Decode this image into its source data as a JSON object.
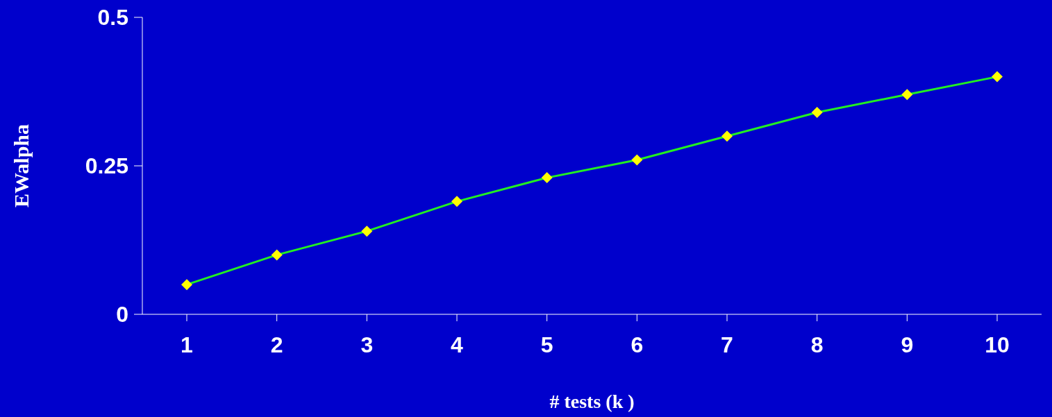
{
  "chart_data": {
    "type": "line",
    "xlabel": "# tests (k )",
    "ylabel": "EWalpha",
    "categories": [
      "1",
      "2",
      "3",
      "4",
      "5",
      "6",
      "7",
      "8",
      "9",
      "10"
    ],
    "series": [
      {
        "color": "#22ee22",
        "values": [
          0.05,
          0.1,
          0.14,
          0.19,
          0.23,
          0.26,
          0.3,
          0.34,
          0.37,
          0.4
        ]
      }
    ],
    "ylim": [
      0,
      0.5
    ],
    "yticks": [
      0,
      0.25,
      0.5
    ],
    "grid": false,
    "legend": false,
    "marker": "diamond",
    "line_style": "solid"
  }
}
